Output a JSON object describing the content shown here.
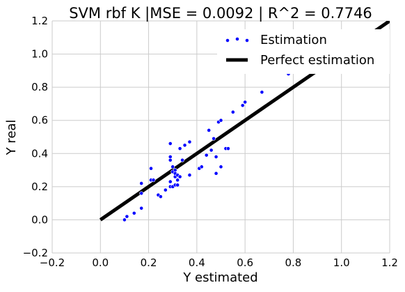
{
  "chart_data": {
    "type": "scatter",
    "title": "SVM rbf K |MSE = 0.0092 | R^2 = 0.7746",
    "xlabel": "Y estimated",
    "ylabel": "Y real",
    "xlim": [
      -0.2,
      1.2
    ],
    "ylim": [
      -0.2,
      1.2
    ],
    "x_ticks": [
      -0.2,
      0.0,
      0.2,
      0.4,
      0.6,
      0.8,
      1.0,
      1.2
    ],
    "y_ticks": [
      -0.2,
      0.0,
      0.2,
      0.4,
      0.6,
      0.8,
      1.0,
      1.2
    ],
    "x_tick_labels": [
      "−0.2",
      "0.0",
      "0.2",
      "0.4",
      "0.6",
      "0.8",
      "1.0",
      "1.2"
    ],
    "y_tick_labels": [
      "−0.2",
      "0.0",
      "0.2",
      "0.4",
      "0.6",
      "0.8",
      "1.0",
      "1.2"
    ],
    "grid": true,
    "legend_position": "top-right",
    "series": [
      {
        "name": "Estimation",
        "kind": "scatter",
        "color": "#0000ff",
        "points": [
          [
            0.1,
            0.0
          ],
          [
            0.11,
            0.02
          ],
          [
            0.14,
            0.04
          ],
          [
            0.17,
            0.07
          ],
          [
            0.17,
            0.16
          ],
          [
            0.17,
            0.22
          ],
          [
            0.21,
            0.24
          ],
          [
            0.21,
            0.31
          ],
          [
            0.22,
            0.24
          ],
          [
            0.24,
            0.15
          ],
          [
            0.25,
            0.14
          ],
          [
            0.27,
            0.18
          ],
          [
            0.29,
            0.2
          ],
          [
            0.29,
            0.23
          ],
          [
            0.29,
            0.36
          ],
          [
            0.29,
            0.38
          ],
          [
            0.29,
            0.46
          ],
          [
            0.3,
            0.2
          ],
          [
            0.3,
            0.29
          ],
          [
            0.3,
            0.32
          ],
          [
            0.31,
            0.21
          ],
          [
            0.31,
            0.26
          ],
          [
            0.31,
            0.28
          ],
          [
            0.31,
            0.3
          ],
          [
            0.32,
            0.21
          ],
          [
            0.32,
            0.24
          ],
          [
            0.32,
            0.27
          ],
          [
            0.33,
            0.26
          ],
          [
            0.33,
            0.43
          ],
          [
            0.34,
            0.36
          ],
          [
            0.35,
            0.45
          ],
          [
            0.37,
            0.27
          ],
          [
            0.37,
            0.47
          ],
          [
            0.41,
            0.31
          ],
          [
            0.42,
            0.32
          ],
          [
            0.44,
            0.39
          ],
          [
            0.45,
            0.54
          ],
          [
            0.46,
            0.42
          ],
          [
            0.47,
            0.49
          ],
          [
            0.48,
            0.28
          ],
          [
            0.48,
            0.38
          ],
          [
            0.49,
            0.59
          ],
          [
            0.5,
            0.32
          ],
          [
            0.5,
            0.6
          ],
          [
            0.52,
            0.43
          ],
          [
            0.53,
            0.43
          ],
          [
            0.55,
            0.65
          ],
          [
            0.59,
            0.69
          ],
          [
            0.6,
            0.71
          ],
          [
            0.67,
            0.77
          ],
          [
            0.78,
            0.88
          ]
        ]
      },
      {
        "name": "Perfect estimation",
        "kind": "line",
        "color": "#000000",
        "x": [
          0.0,
          1.2
        ],
        "y": [
          0.0,
          1.2
        ]
      }
    ]
  },
  "style": {
    "grid_color": "#cbcbcb",
    "axes_face_color": "#ffffff"
  }
}
